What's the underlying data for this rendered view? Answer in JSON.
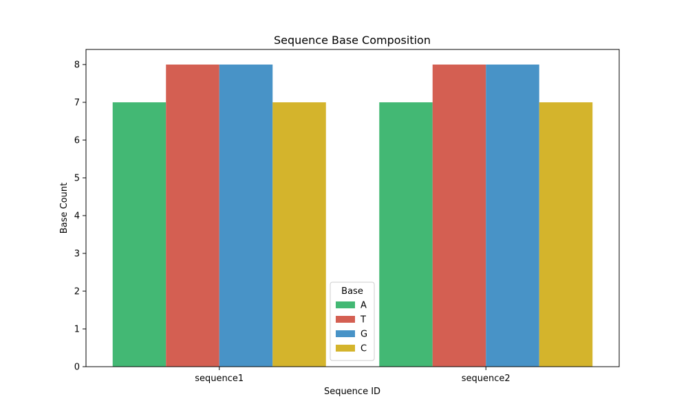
{
  "chart_data": {
    "type": "bar",
    "title": "Sequence Base Composition",
    "xlabel": "Sequence ID",
    "ylabel": "Base Count",
    "categories": [
      "sequence1",
      "sequence2"
    ],
    "series": [
      {
        "name": "A",
        "values": [
          7,
          7
        ],
        "color": "#43b874"
      },
      {
        "name": "T",
        "values": [
          8,
          8
        ],
        "color": "#d45f52"
      },
      {
        "name": "G",
        "values": [
          8,
          8
        ],
        "color": "#4893c7"
      },
      {
        "name": "C",
        "values": [
          7,
          7
        ],
        "color": "#d4b42c"
      }
    ],
    "ylim": [
      0,
      8.4
    ],
    "yticks": [
      0,
      1,
      2,
      3,
      4,
      5,
      6,
      7,
      8
    ],
    "grid": false,
    "legend": {
      "title": "Base",
      "placement": "lower-center"
    }
  }
}
